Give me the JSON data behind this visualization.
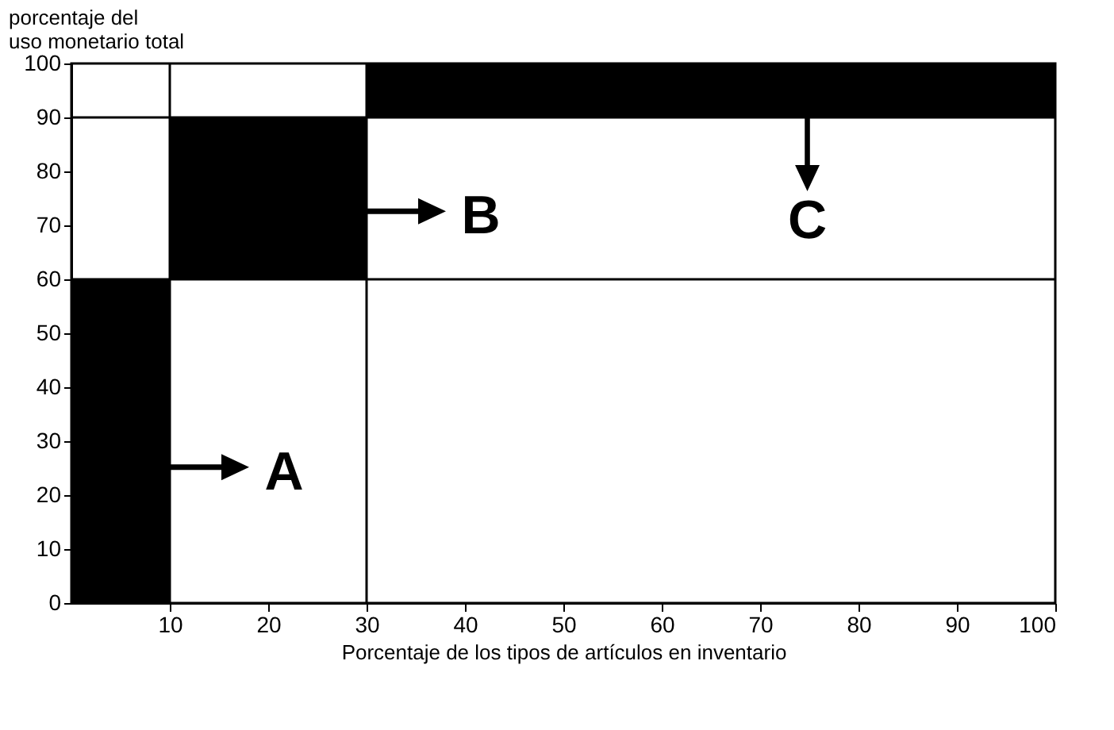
{
  "chart_data": {
    "type": "histogram",
    "bins": [
      0,
      10,
      30,
      100
    ],
    "values": [
      60,
      30,
      10
    ],
    "base": [
      0,
      60,
      90
    ],
    "colors": [
      "#000000",
      "#000000",
      "#000000"
    ],
    "xlabel": "Porcentaje de los tipos de artículos en inventario",
    "ylabel": "porcentaje del\nuso monetario total",
    "xlim": [
      0,
      100
    ],
    "ylim": [
      0,
      100
    ],
    "xticks": [
      10,
      20,
      30,
      40,
      50,
      60,
      70,
      80,
      90,
      100
    ],
    "yticks": [
      0,
      10,
      20,
      30,
      40,
      50,
      60,
      70,
      80,
      90,
      100
    ],
    "ref_lines": [
      {
        "axis": "x",
        "value": 10,
        "label": null
      },
      {
        "axis": "x",
        "value": 30,
        "label": null
      },
      {
        "axis": "y",
        "value": 60,
        "label": null
      },
      {
        "axis": "y",
        "value": 90,
        "label": null
      }
    ],
    "annotations": [
      "A",
      "B",
      "C"
    ],
    "grid": false
  }
}
